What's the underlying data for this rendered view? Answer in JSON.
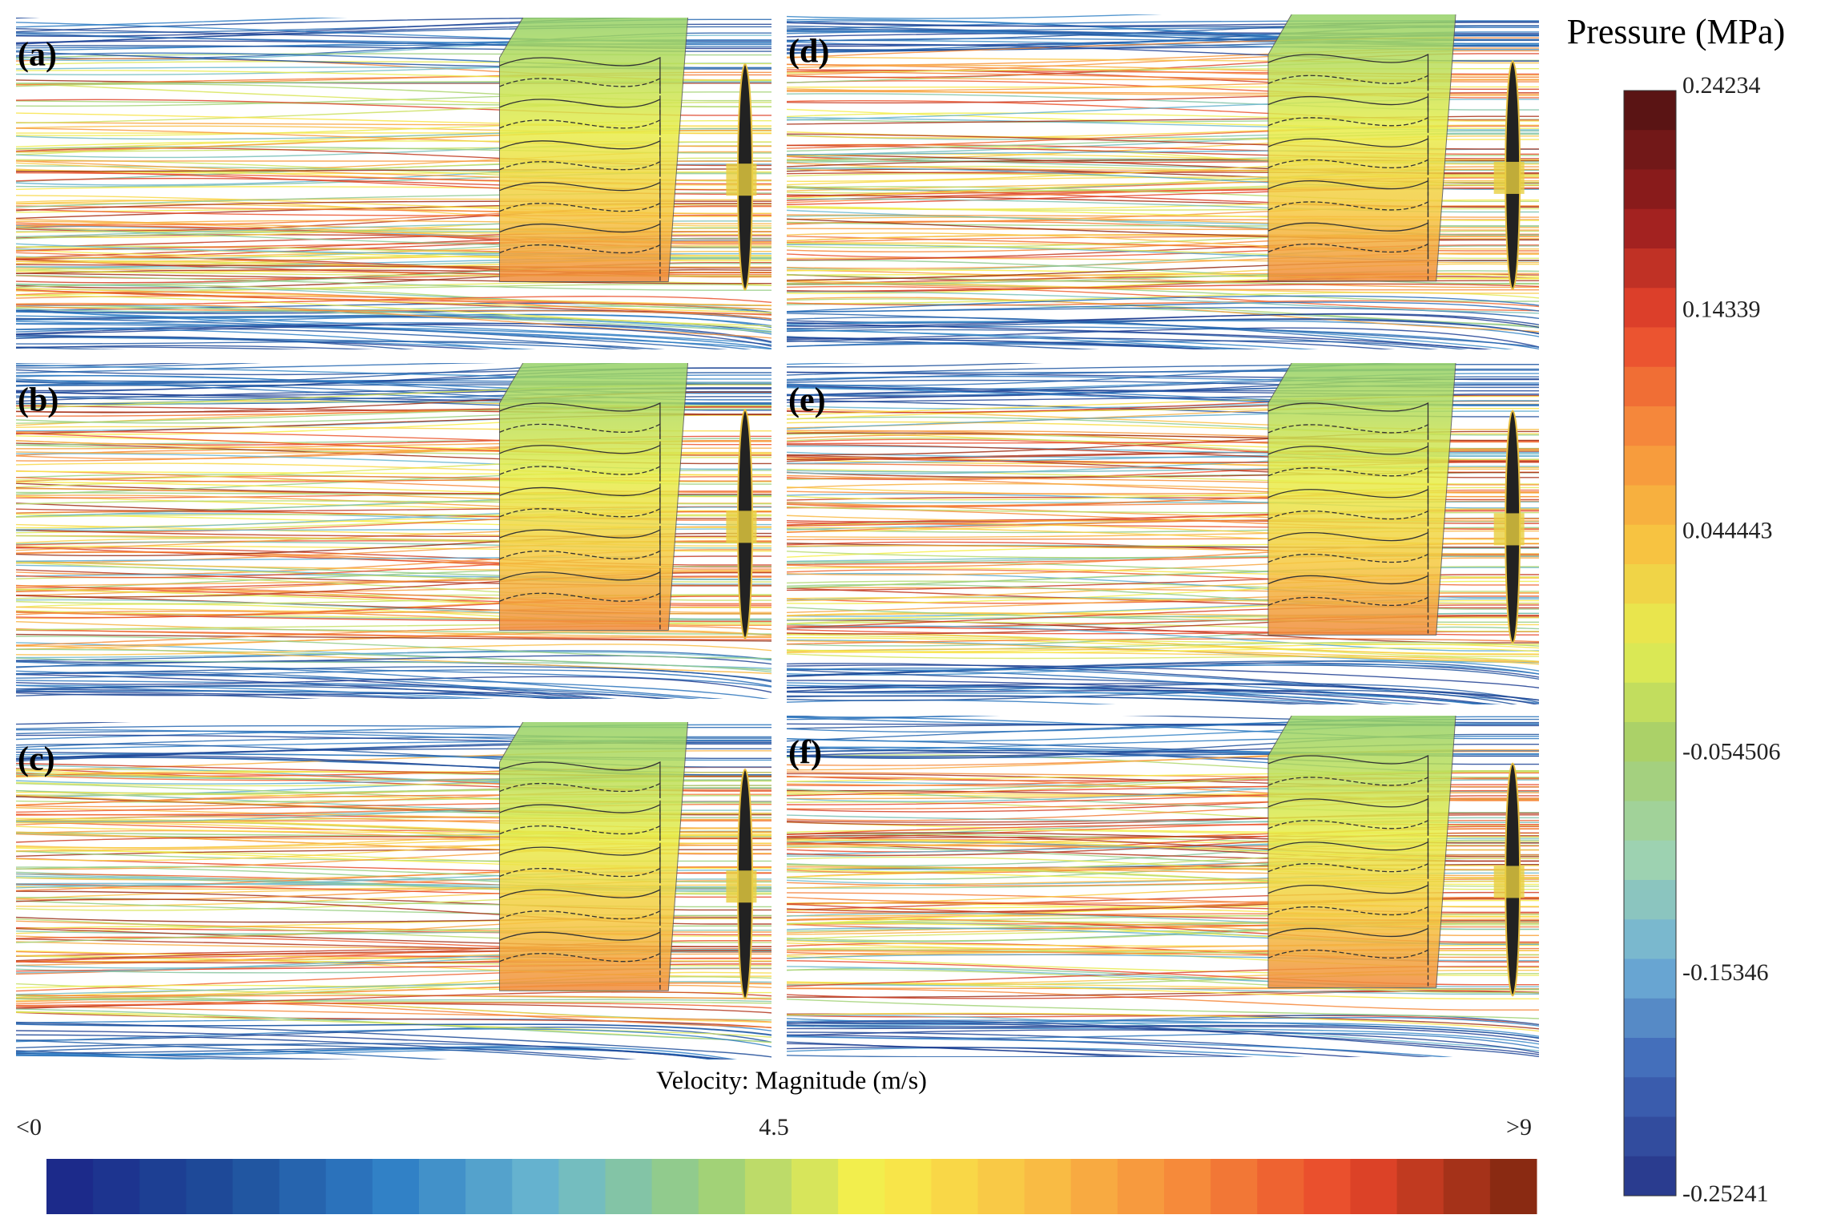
{
  "panels": [
    {
      "label": "(a)"
    },
    {
      "label": "(b)"
    },
    {
      "label": "(c)"
    },
    {
      "label": "(d)"
    },
    {
      "label": "(e)"
    },
    {
      "label": "(f)"
    }
  ],
  "pressure_legend": {
    "title": "Pressure (MPa)",
    "ticks": [
      "0.24234",
      "0.14339",
      "0.044443",
      "-0.054506",
      "-0.15346",
      "-0.25241"
    ]
  },
  "velocity_legend": {
    "title": "Velocity: Magnitude (m/s)",
    "ticks": [
      "<0",
      "4.5",
      ">9"
    ]
  }
}
